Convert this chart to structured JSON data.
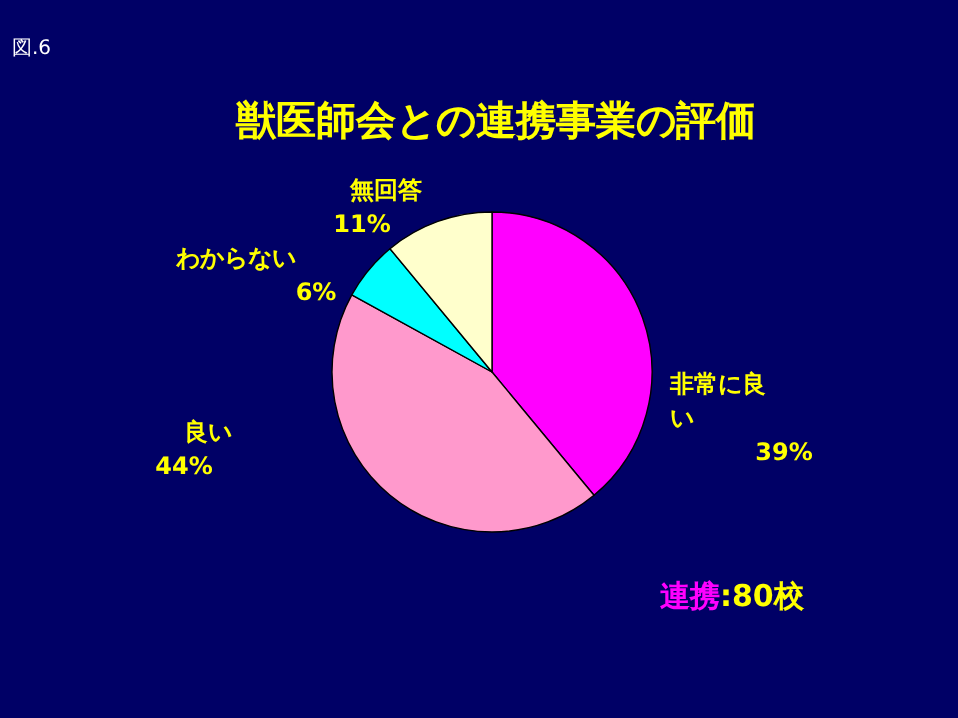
{
  "chart_data": {
    "type": "pie",
    "title": "獣医師会との連携事業の評価",
    "categories": [
      "非常に良い",
      "良い",
      "わからない",
      "無回答"
    ],
    "values": [
      39,
      44,
      6,
      11
    ],
    "colors": [
      "#ff00ff",
      "#ff99cc",
      "#00ffff",
      "#ffffcc"
    ],
    "value_labels": [
      "39%",
      "44%",
      "6%",
      "11%"
    ],
    "annotations": [
      "図.6",
      "連携:80校"
    ]
  }
}
